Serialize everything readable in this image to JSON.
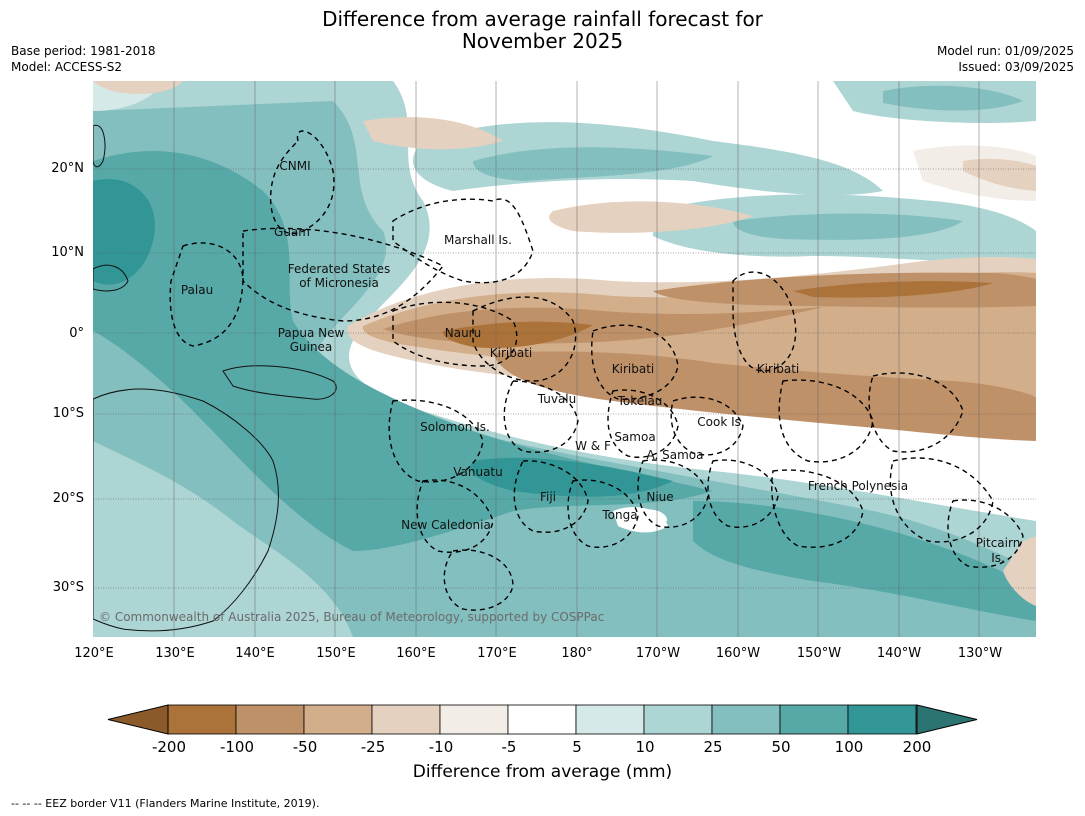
{
  "header": {
    "title_line1": "Difference from average rainfall forecast for",
    "title_line2": "November 2025",
    "base_period": "Base period: 1981-2018",
    "model": "Model: ACCESS-S2",
    "model_run": "Model run: 01/09/2025",
    "issued": "Issued: 03/09/2025"
  },
  "map": {
    "copyright": "© Commonwealth of Australia 2025, Bureau of Meteorology, supported by COSPPac",
    "lat_ticks": [
      "20°N",
      "10°N",
      "0°",
      "10°S",
      "20°S",
      "30°S"
    ],
    "lon_ticks": [
      "120°E",
      "130°E",
      "140°E",
      "150°E",
      "160°E",
      "170°E",
      "180°",
      "170°W",
      "160°W",
      "150°W",
      "140°W",
      "130°W"
    ],
    "places": {
      "cnmi": "CNMI",
      "guam": "Guam",
      "marshall": "Marshall Is.",
      "fsm_1": "Federated States",
      "fsm_2": "of Micronesia",
      "palau": "Palau",
      "png_1": "Papua New",
      "png_2": "Guinea",
      "nauru": "Nauru",
      "kiribati_w": "Kiribati",
      "kiribati_c": "Kiribati",
      "kiribati_e": "Kiribati",
      "tuvalu": "Tuvalu",
      "tokelau": "Tokelau",
      "cook": "Cook Is.",
      "solomon": "Solomon Is.",
      "wf": "W & F",
      "samoa": "Samoa",
      "asamoa": "A. Samoa",
      "vanuatu": "Vanuatu",
      "fiji": "Fiji",
      "niue": "Niue",
      "tonga": "Tonga",
      "newcal": "New Caledonia",
      "fp": "French Polynesia",
      "pitcairn_1": "Pitcairn",
      "pitcairn_2": "Is."
    }
  },
  "legend": {
    "labels": [
      "-200",
      "-100",
      "-50",
      "-25",
      "-10",
      "-5",
      "5",
      "10",
      "25",
      "50",
      "100",
      "200"
    ],
    "colors": [
      "#ab7339",
      "#bf9169",
      "#d2ae8b",
      "#e5d1bf",
      "#f2ede6",
      "#ffffff",
      "#d4e9e8",
      "#acd5d4",
      "#84bfbf",
      "#57a9a8",
      "#319695"
    ],
    "under_color": "#8b5a2b",
    "over_color": "#2b7472",
    "title": "Difference from average (mm)"
  },
  "footnote": "--  --  -- EEZ border V11 (Flanders Marine Institute, 2019)."
}
